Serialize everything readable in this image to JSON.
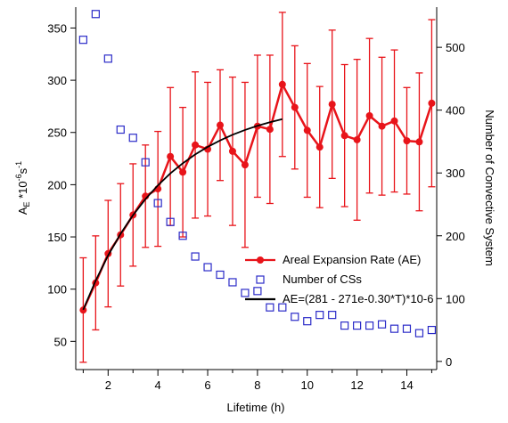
{
  "chart_data": {
    "type": "line",
    "xlabel": "Lifetime (h)",
    "ylabel": [
      {
        "text": "A"
      },
      {
        "text": "E",
        "shift": "sub"
      },
      {
        "text": " *10"
      },
      {
        "text": "-6",
        "shift": "sup"
      },
      {
        "text": "s"
      },
      {
        "text": "-1",
        "shift": "sup"
      }
    ],
    "y2label": "Number of Convective System",
    "xlim": [
      0.7,
      15.2
    ],
    "xticks": [
      2,
      4,
      6,
      8,
      10,
      12,
      14
    ],
    "xminor": [
      1,
      3,
      5,
      7,
      9,
      11,
      13,
      15
    ],
    "ylim": [
      23,
      370
    ],
    "yticks": [
      50,
      100,
      150,
      200,
      250,
      300,
      350
    ],
    "y2lim": [
      -13,
      564
    ],
    "y2ticks": [
      0,
      100,
      200,
      300,
      400,
      500
    ],
    "x": [
      1,
      1.5,
      2,
      2.5,
      3,
      3.5,
      4,
      4.5,
      5,
      5.5,
      6,
      6.5,
      7,
      7.5,
      8,
      8.5,
      9,
      9.5,
      10,
      10.5,
      11,
      11.5,
      12,
      12.5,
      13,
      13.5,
      14,
      14.5,
      15
    ],
    "series": [
      {
        "name": "Areal Expansion Rate (AE)",
        "color": "#e8141a",
        "marker": "circle",
        "values": [
          80,
          106,
          134,
          152,
          171,
          189,
          196,
          227,
          212,
          238,
          234,
          257,
          232,
          219,
          256,
          253,
          296,
          274,
          252,
          236,
          277,
          247,
          243,
          266,
          256,
          261,
          242,
          241,
          278
        ],
        "errors": [
          50,
          45,
          51,
          49,
          49,
          49,
          55,
          66,
          62,
          70,
          64,
          53,
          71,
          79,
          68,
          71,
          69,
          59,
          64,
          58,
          71,
          68,
          77,
          74,
          66,
          68,
          51,
          66,
          80
        ]
      },
      {
        "name": "Number of CSs",
        "color": "#2b2bc8",
        "marker": "square",
        "axis": "y2",
        "values": [
          512,
          553,
          482,
          369,
          356,
          317,
          252,
          222,
          200,
          167,
          150,
          138,
          126,
          109,
          112,
          86,
          86,
          71,
          64,
          74,
          74,
          57,
          57,
          57,
          59,
          52,
          52,
          45,
          50
        ]
      },
      {
        "name": "AE=(281 - 271e-0.30*T)*10-6",
        "color": "#000000",
        "marker": "none",
        "x": [
          1,
          1.5,
          2,
          2.5,
          3,
          3.5,
          4,
          4.5,
          5,
          5.5,
          6,
          6.5,
          7,
          7.5,
          8,
          8.5,
          9
        ],
        "values": [
          80.2,
          108.2,
          132.3,
          153.0,
          170.8,
          186.2,
          199.4,
          210.8,
          220.5,
          229.0,
          236.2,
          242.4,
          247.8,
          252.4,
          256.4,
          259.8,
          262.8
        ]
      }
    ]
  }
}
